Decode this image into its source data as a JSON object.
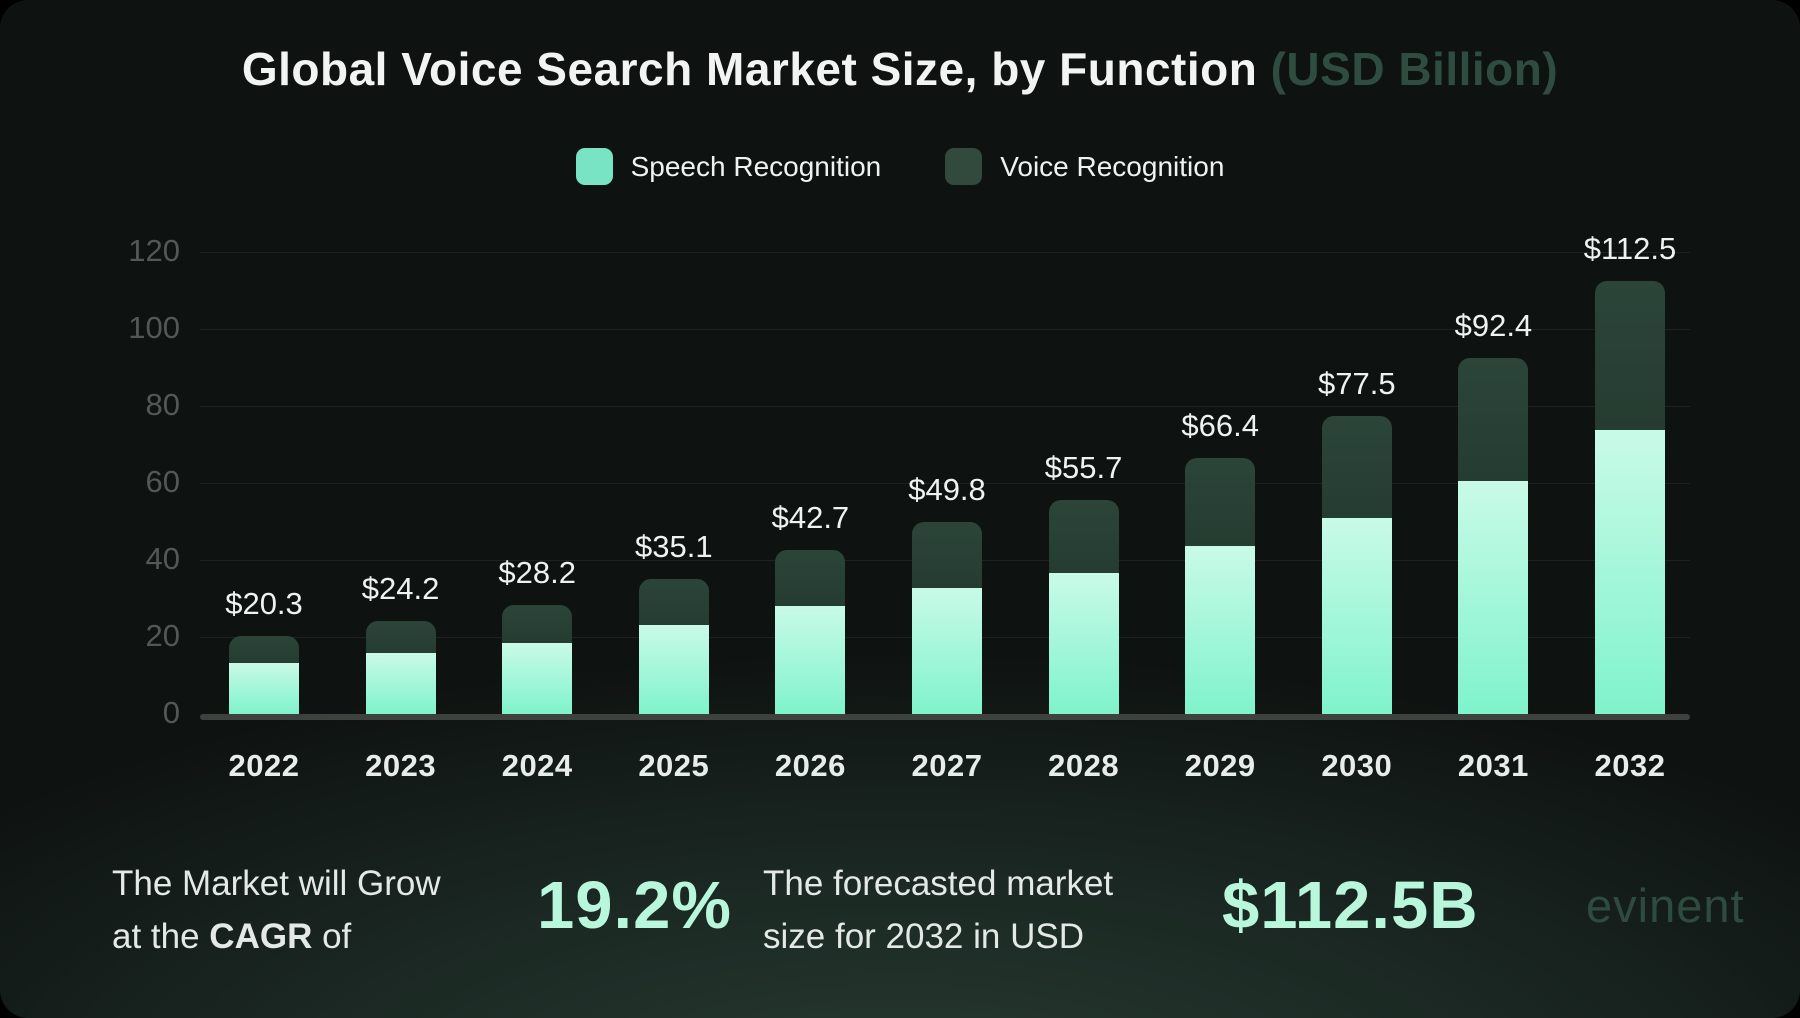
{
  "header": {
    "title": "Global Voice Search Market Size, by Function",
    "title_suffix": " (USD Billion)"
  },
  "chart_data": {
    "type": "bar",
    "stacked": true,
    "title": "Global Voice Search Market Size, by Function (USD Billion)",
    "categories": [
      "2022",
      "2023",
      "2024",
      "2025",
      "2026",
      "2027",
      "2028",
      "2029",
      "2030",
      "2031",
      "2032"
    ],
    "series": [
      {
        "name": "Speech Recognition",
        "color_top": "#c9fae8",
        "color_bottom": "#7ff3cc",
        "values": [
          13.3,
          15.9,
          18.5,
          23.0,
          28.0,
          32.7,
          36.5,
          43.6,
          50.8,
          60.6,
          73.8
        ]
      },
      {
        "name": "Voice Recognition",
        "color": "#2c4539",
        "values": [
          7.0,
          8.3,
          9.7,
          12.1,
          14.7,
          17.1,
          19.2,
          22.8,
          26.7,
          31.8,
          38.7
        ]
      }
    ],
    "totals": [
      20.3,
      24.2,
      28.2,
      35.1,
      42.7,
      49.8,
      55.7,
      66.4,
      77.5,
      92.4,
      112.5
    ],
    "total_labels": [
      "$20.3",
      "$24.2",
      "$28.2",
      "$35.1",
      "$42.7",
      "$49.8",
      "$55.7",
      "$66.4",
      "$77.5",
      "$92.4",
      "$112.5"
    ],
    "xlabel": "",
    "ylabel": "",
    "ylim": [
      0,
      120
    ],
    "yticks": [
      0,
      20,
      40,
      60,
      80,
      100,
      120
    ],
    "grid": true,
    "legend_position": "top"
  },
  "footer": {
    "stat1_line1": "The Market will Grow",
    "stat1_line2_prefix": "at the ",
    "stat1_line2_bold": "CAGR",
    "stat1_line2_suffix": " of",
    "stat1_value": "19.2%",
    "stat2_line1": "The forecasted market",
    "stat2_line2": "size for 2032 in USD",
    "stat2_value": "$112.5B",
    "brand": "evinent"
  },
  "colors": {
    "background": "#0e1211",
    "accent_mint": "#b9f7dd",
    "speech_top": "#c9fae8",
    "speech_bottom": "#7ff3cc",
    "voice_green": "#2c4539",
    "title_suffix_green": "#2e4d40"
  }
}
